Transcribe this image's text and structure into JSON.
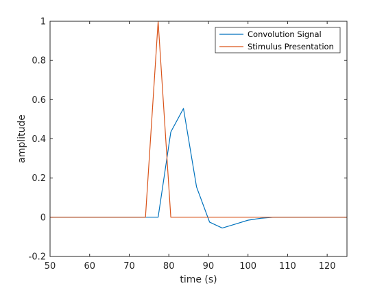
{
  "chart_data": {
    "type": "line",
    "title": "",
    "xlabel": "time (s)",
    "ylabel": "amplitude",
    "xlim": [
      50,
      125
    ],
    "ylim": [
      -0.2,
      1
    ],
    "xticks": [
      50,
      60,
      70,
      80,
      90,
      100,
      110,
      120
    ],
    "yticks": [
      -0.2,
      0,
      0.2,
      0.4,
      0.6,
      0.8,
      1
    ],
    "xtick_labels": [
      "50",
      "60",
      "70",
      "80",
      "90",
      "100",
      "110",
      "120"
    ],
    "ytick_labels": [
      "-0.2",
      "0",
      "0.2",
      "0.4",
      "0.6",
      "0.8",
      "1"
    ],
    "grid": false,
    "legend_position": "top-right",
    "series": [
      {
        "name": "Convolution Signal",
        "color": "#0072bd",
        "x": [
          50,
          77.3,
          80.5,
          83.7,
          87,
          90.3,
          93.5,
          96.8,
          100,
          103.3,
          106.5,
          110,
          125
        ],
        "y": [
          0,
          0,
          0.435,
          0.555,
          0.155,
          -0.025,
          -0.055,
          -0.035,
          -0.015,
          -0.005,
          0,
          0,
          0
        ]
      },
      {
        "name": "Stimulus Presentation",
        "color": "#d95319",
        "x": [
          50,
          74.1,
          77.3,
          80.5,
          125
        ],
        "y": [
          0,
          0,
          1,
          0,
          0
        ]
      }
    ]
  }
}
